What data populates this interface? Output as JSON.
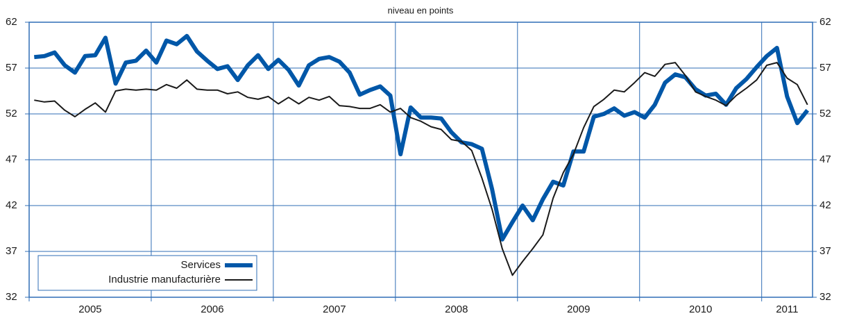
{
  "chart_data": {
    "type": "line",
    "subtitle": "niveau en points",
    "categories": [
      "2005",
      null,
      null,
      null,
      null,
      null,
      null,
      null,
      null,
      null,
      null,
      null,
      "2006",
      null,
      null,
      null,
      null,
      null,
      null,
      null,
      null,
      null,
      null,
      null,
      "2007",
      null,
      null,
      null,
      null,
      null,
      null,
      null,
      null,
      null,
      null,
      null,
      "2008",
      null,
      null,
      null,
      null,
      null,
      null,
      null,
      null,
      null,
      null,
      null,
      "2009",
      null,
      null,
      null,
      null,
      null,
      null,
      null,
      null,
      null,
      null,
      null,
      "2010",
      null,
      null,
      null,
      null,
      null,
      null,
      null,
      null,
      null,
      null,
      null,
      "2011",
      null,
      null,
      null,
      null
    ],
    "series": [
      {
        "name": "Services",
        "color": "#0057a8",
        "values": [
          58.2,
          58.3,
          58.7,
          57.3,
          56.5,
          58.3,
          58.4,
          60.3,
          55.3,
          57.6,
          57.8,
          58.9,
          57.6,
          60.0,
          59.6,
          60.5,
          58.8,
          57.8,
          56.9,
          57.2,
          55.7,
          57.3,
          58.4,
          56.9,
          57.9,
          56.8,
          55.1,
          57.3,
          58.0,
          58.2,
          57.7,
          56.5,
          54.1,
          54.6,
          55.0,
          54.0,
          47.6,
          52.7,
          51.6,
          51.6,
          51.5,
          50.0,
          48.9,
          48.7,
          48.2,
          43.8,
          38.3,
          40.2,
          42.0,
          40.4,
          42.7,
          44.6,
          44.2,
          47.9,
          47.9,
          51.7,
          52.0,
          52.6,
          51.8,
          52.2,
          51.6,
          53.0,
          55.4,
          56.3,
          56.0,
          54.7,
          54.0,
          54.2,
          53.0,
          54.8,
          55.8,
          57.1,
          58.3,
          59.2,
          53.9,
          51.0,
          52.4
        ]
      },
      {
        "name": "Industrie manufacturière",
        "color": "#1a1a1a",
        "values": [
          53.5,
          53.3,
          53.4,
          52.4,
          51.7,
          52.5,
          53.2,
          52.2,
          54.5,
          54.7,
          54.6,
          54.7,
          54.6,
          55.2,
          54.8,
          55.7,
          54.7,
          54.6,
          54.6,
          54.2,
          54.4,
          53.8,
          53.6,
          53.9,
          53.1,
          53.8,
          53.1,
          53.8,
          53.5,
          53.9,
          52.9,
          52.8,
          52.6,
          52.6,
          53.0,
          52.2,
          52.6,
          51.6,
          51.2,
          50.6,
          50.3,
          49.2,
          49.0,
          48.0,
          45.0,
          41.6,
          37.3,
          34.4,
          35.9,
          37.3,
          38.8,
          42.8,
          45.6,
          47.6,
          50.5,
          52.8,
          53.6,
          54.6,
          54.4,
          55.4,
          56.5,
          56.1,
          57.4,
          57.6,
          56.2,
          54.4,
          53.9,
          53.5,
          52.9,
          54.0,
          54.8,
          55.7,
          57.3,
          57.6,
          55.9,
          55.2,
          53.0
        ]
      }
    ],
    "ylim": [
      32,
      62
    ],
    "yticks": [
      32,
      37,
      42,
      47,
      52,
      57,
      62
    ],
    "grid": true,
    "grid_color": "#2f6db5",
    "legend": "lower left"
  }
}
